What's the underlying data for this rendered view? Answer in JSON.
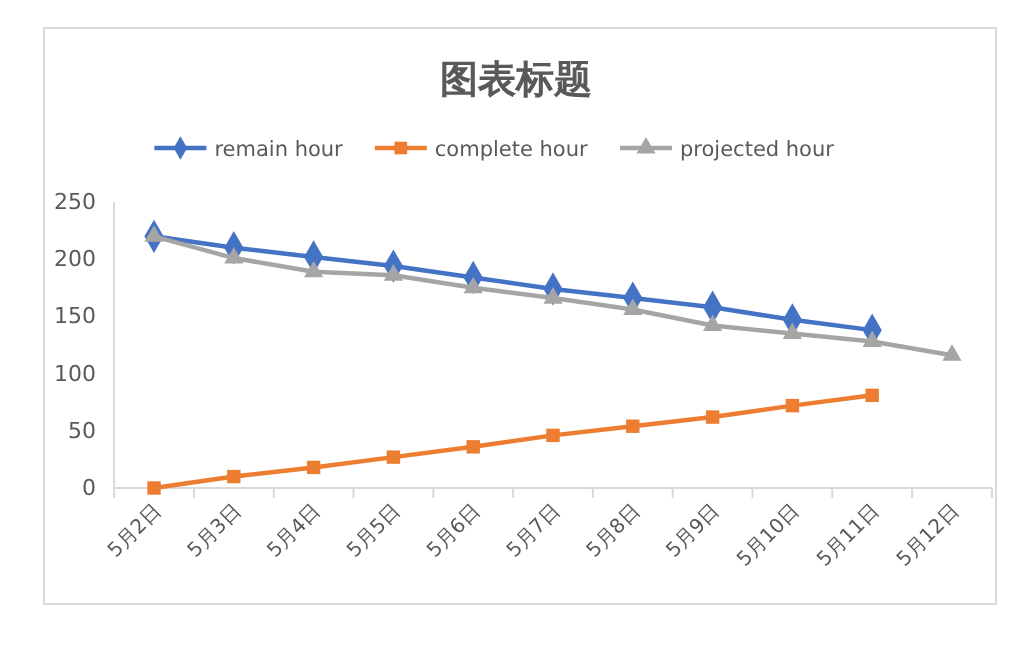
{
  "chart_data": {
    "type": "line",
    "title": "图表标题",
    "categories": [
      "5月2日",
      "5月3日",
      "5月4日",
      "5月5日",
      "5月6日",
      "5月7日",
      "5月8日",
      "5月9日",
      "5月10日",
      "5月11日",
      "5月12日"
    ],
    "series": [
      {
        "name": "remain hour",
        "color": "#4472c4",
        "marker": "diamond",
        "values": [
          220,
          210,
          202,
          194,
          184,
          174,
          166,
          158,
          147,
          138,
          null
        ]
      },
      {
        "name": "complete hour",
        "color": "#ed7d31",
        "marker": "square",
        "values": [
          0,
          10,
          18,
          27,
          36,
          46,
          54,
          62,
          72,
          81,
          null
        ]
      },
      {
        "name": "projected hour",
        "color": "#a5a5a5",
        "marker": "triangle",
        "values": [
          220,
          201,
          189,
          186,
          175,
          166,
          156,
          142,
          135,
          128,
          116
        ]
      }
    ],
    "ylim": [
      0,
      250
    ],
    "yticks": [
      0,
      50,
      100,
      150,
      200,
      250
    ],
    "grid": false,
    "legend": "top"
  }
}
